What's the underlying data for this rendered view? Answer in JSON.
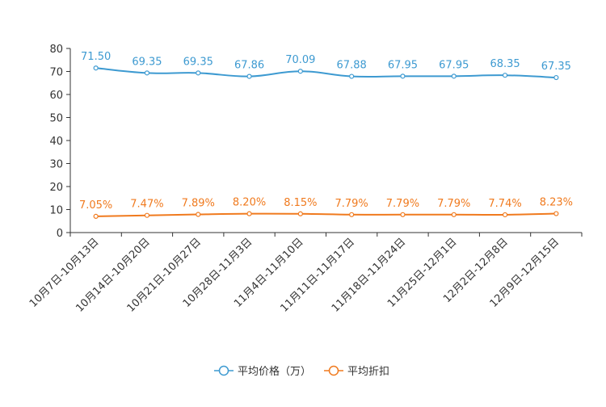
{
  "chart_data": {
    "type": "line",
    "title": "",
    "xlabel": "",
    "ylabel": "",
    "ylim": [
      0,
      80
    ],
    "yticks": [
      0,
      10,
      20,
      30,
      40,
      50,
      60,
      70,
      80
    ],
    "grid": false,
    "legend_position": "bottom-center",
    "categories": [
      "10月7日-10月13日",
      "10月14日-10月20日",
      "10月21日-10月27日",
      "10月28日-11月3日",
      "11月4日-11月10日",
      "11月11日-11月17日",
      "11月18日-11月24日",
      "11月25日-12月1日",
      "12月2日-12月8日",
      "12月9日-12月15日"
    ],
    "series": [
      {
        "name": "平均价格（万）",
        "color": "#3d9ad1",
        "values": [
          71.5,
          69.35,
          69.35,
          67.86,
          70.09,
          67.88,
          67.95,
          67.95,
          68.35,
          67.35
        ],
        "labels": [
          "71.50",
          "69.35",
          "69.35",
          "67.86",
          "70.09",
          "67.88",
          "67.95",
          "67.95",
          "68.35",
          "67.35"
        ]
      },
      {
        "name": "平均折扣",
        "color": "#f07a1e",
        "values": [
          7.05,
          7.47,
          7.89,
          8.2,
          8.15,
          7.79,
          7.79,
          7.79,
          7.74,
          8.23
        ],
        "labels": [
          "7.05%",
          "7.47%",
          "7.89%",
          "8.20%",
          "8.15%",
          "7.79%",
          "7.79%",
          "7.79%",
          "7.74%",
          "8.23%"
        ]
      }
    ]
  }
}
